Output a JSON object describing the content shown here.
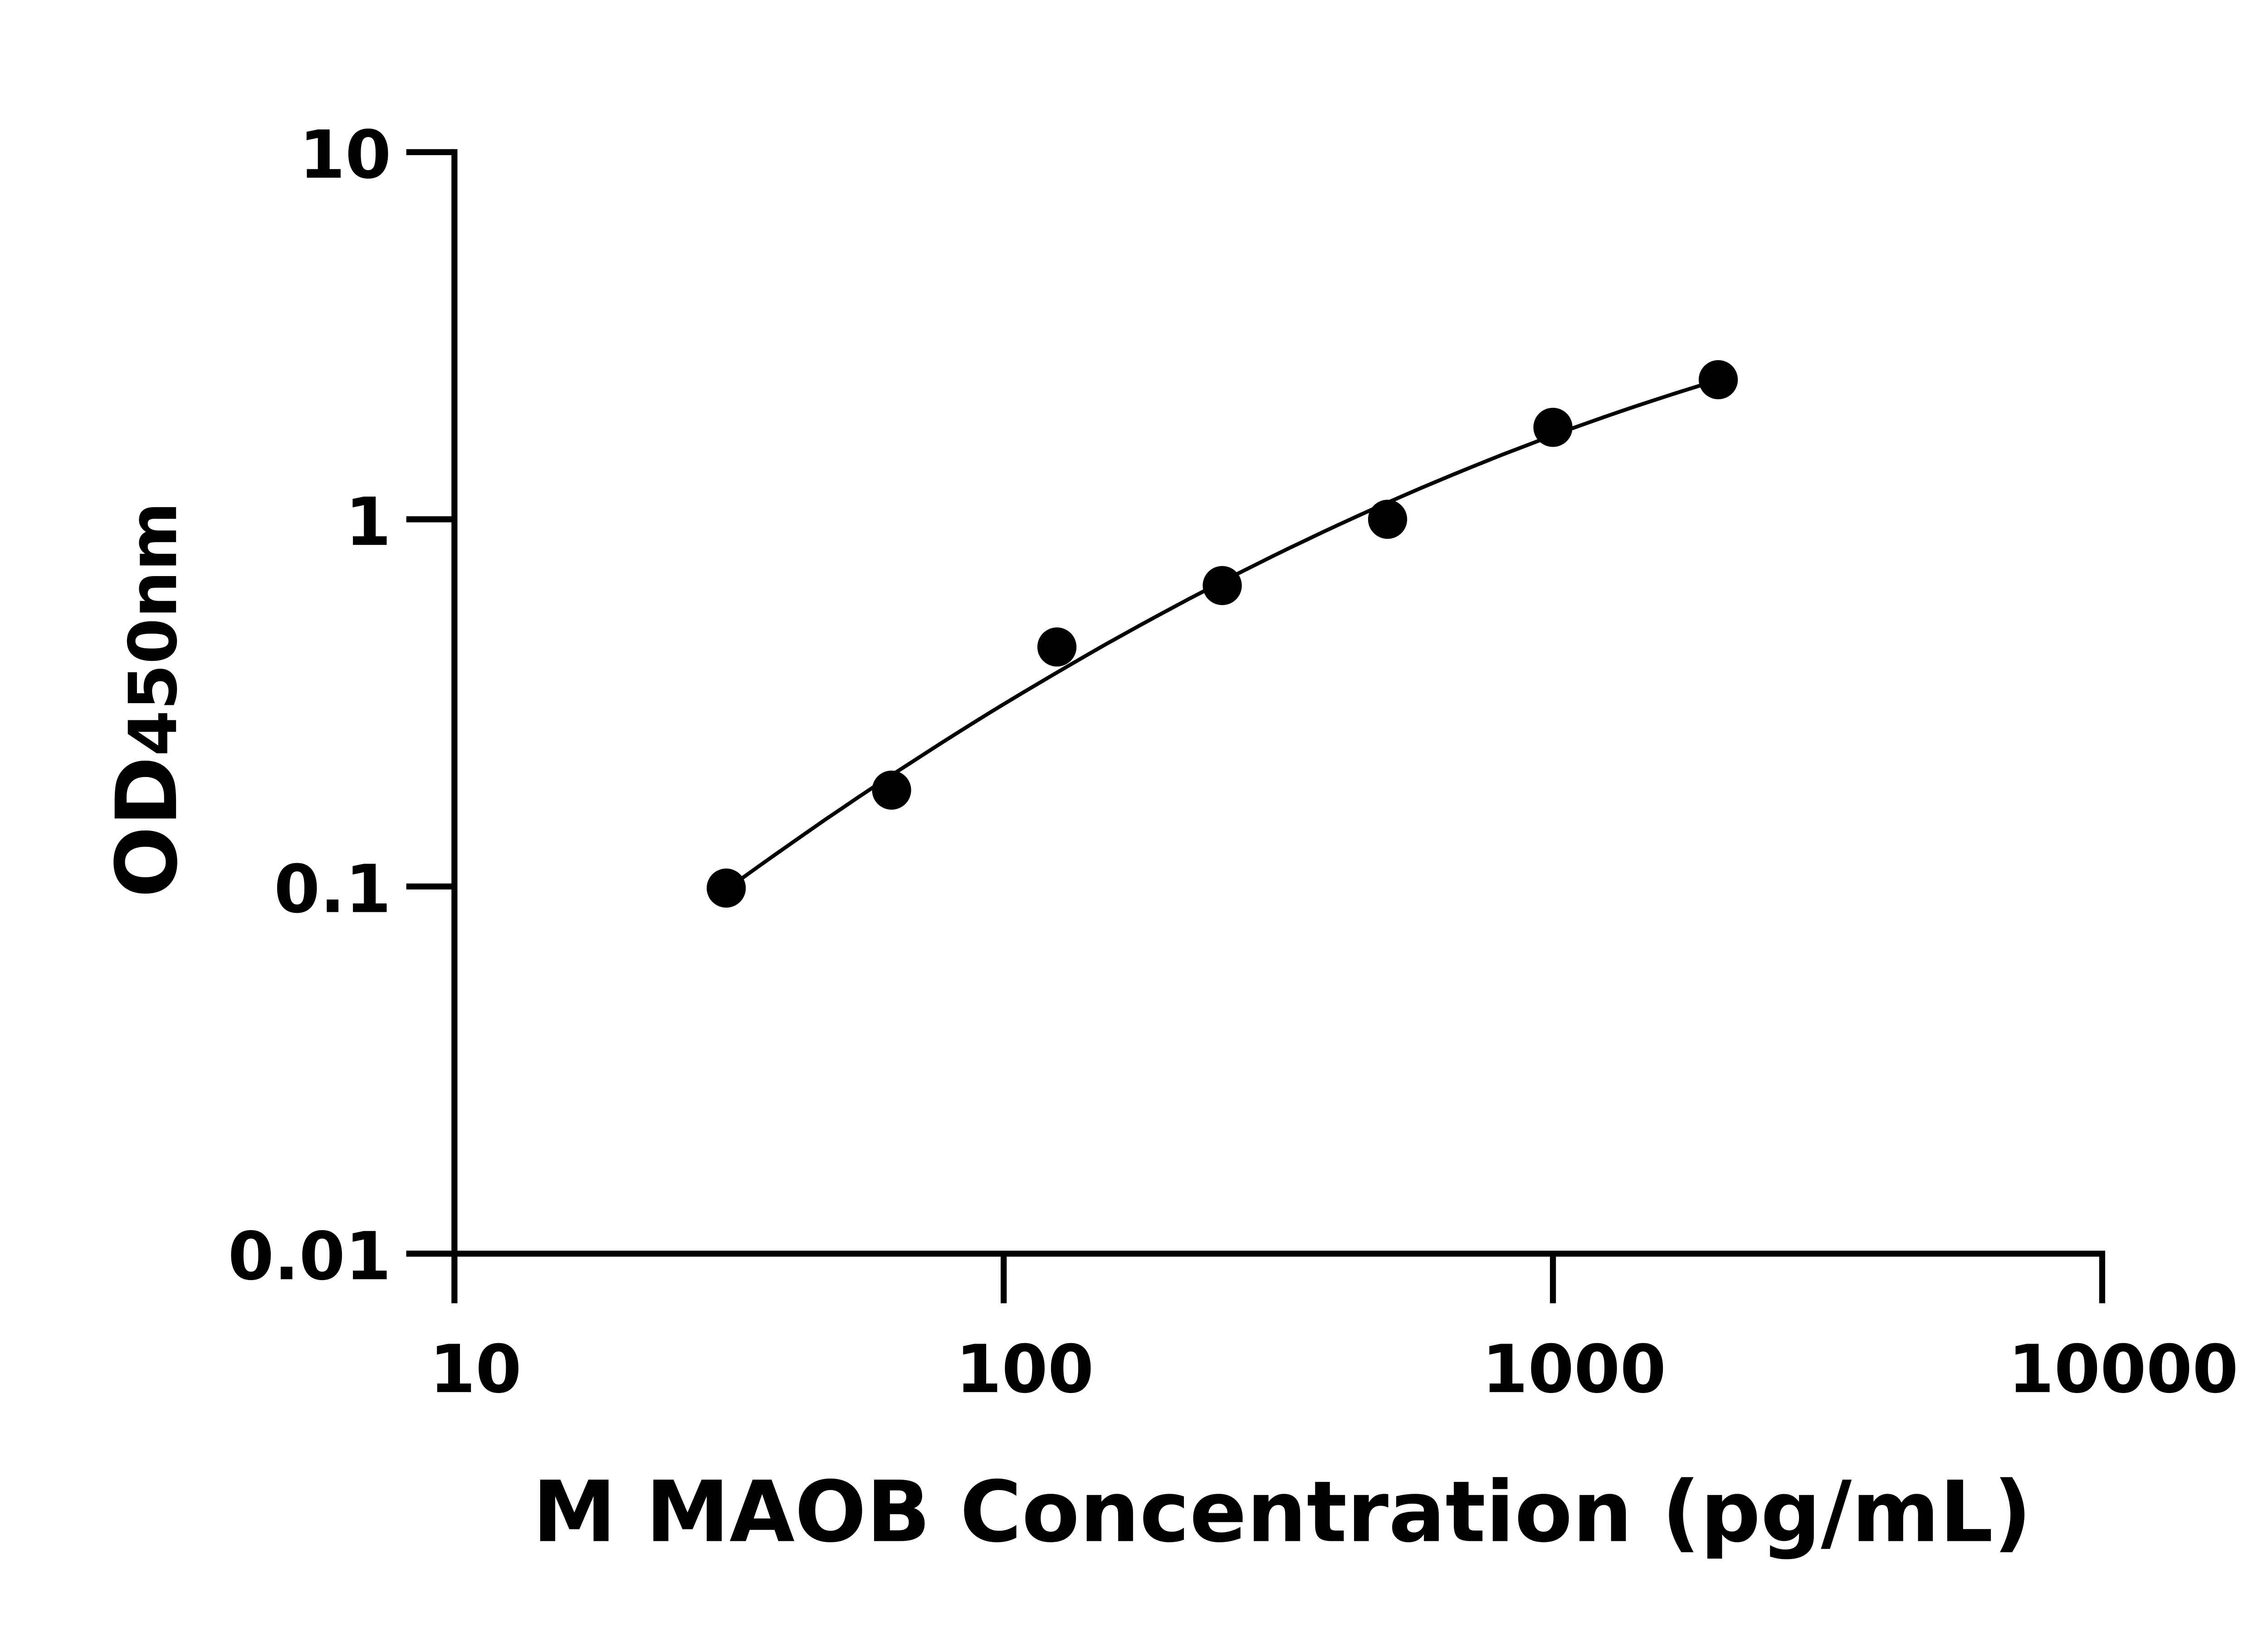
{
  "chart_data": {
    "type": "scatter",
    "title": "",
    "xlabel": "M MAOB Concentration (pg/mL)",
    "ylabel_main": "OD",
    "ylabel_sub": "450nm",
    "xscale": "log",
    "yscale": "log",
    "xlim": [
      10,
      10000
    ],
    "ylim": [
      0.01,
      10
    ],
    "xticks": [
      "10",
      "100",
      "1000",
      "10000"
    ],
    "yticks": [
      "0.01",
      "0.1",
      "1",
      "10"
    ],
    "grid": false,
    "legend": "none",
    "series": [
      {
        "x": [
          31.25,
          62.5,
          125,
          250,
          500,
          1000,
          2000
        ],
        "y": [
          0.099,
          0.183,
          0.449,
          0.66,
          1.0,
          1.78,
          2.4
        ],
        "marker": "filled-circle",
        "fit_line": true
      }
    ],
    "colors": {
      "marks": "#000000",
      "axes": "#000000"
    }
  }
}
